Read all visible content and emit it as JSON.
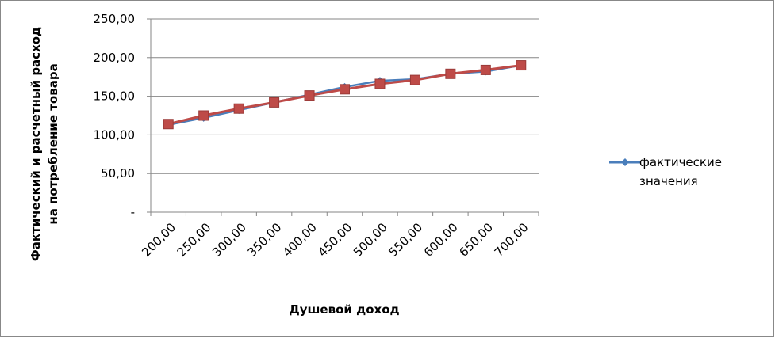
{
  "chart_data": {
    "type": "line",
    "y_label": [
      "Фактический и расчетный расход",
      "на потребление товара"
    ],
    "x_label": "Душевой доход",
    "categories": [
      "200,00",
      "250,00",
      "300,00",
      "350,00",
      "400,00",
      "450,00",
      "500,00",
      "550,00",
      "600,00",
      "650,00",
      "700,00"
    ],
    "series": [
      {
        "name": "фактические значения",
        "color": "#4a7ebb",
        "marker": "diamond",
        "values": [
          113,
          122,
          132,
          142,
          152,
          162,
          170,
          172,
          179,
          182,
          190
        ]
      },
      {
        "color": "#be4b48",
        "marker": "square",
        "values": [
          114,
          125,
          134,
          142,
          151,
          159,
          166,
          171,
          179,
          184,
          190
        ]
      }
    ],
    "ylim": [
      0,
      250
    ],
    "yticks": [
      {
        "value": 0,
        "label": "-"
      },
      {
        "value": 50,
        "label": "50,00"
      },
      {
        "value": 100,
        "label": "100,00"
      },
      {
        "value": 150,
        "label": "150,00"
      },
      {
        "value": 200,
        "label": "200,00"
      },
      {
        "value": 250,
        "label": "250,00"
      }
    ],
    "grid": true,
    "legend": "right"
  }
}
